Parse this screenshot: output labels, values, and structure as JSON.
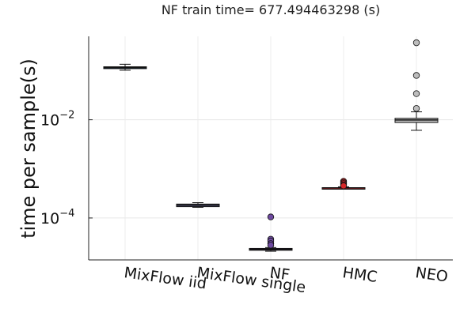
{
  "chart_data": {
    "type": "box",
    "title": "NF train time= 677.494463298 (s)",
    "xlabel": "",
    "ylabel": "time per sample(s)",
    "yscale": "log10",
    "ylim": [
      1.4e-05,
      0.5
    ],
    "yticks": [
      {
        "value": 0.0001,
        "base": "10",
        "exponent": "−4"
      },
      {
        "value": 0.01,
        "base": "10",
        "exponent": "−2"
      }
    ],
    "grid": true,
    "legend": "none",
    "categories": [
      "MixFlow iid",
      "MixFlow single",
      "NF",
      "HMC",
      "NEO"
    ],
    "boxes": [
      {
        "category": "MixFlow iid",
        "color": "#1f77b4",
        "whisker_low": 0.102,
        "q1": 0.11,
        "median": 0.115,
        "q3": 0.12,
        "whisker_high": 0.135,
        "outliers": []
      },
      {
        "category": "MixFlow single",
        "color": "#6d6f9e",
        "whisker_low": 0.000165,
        "q1": 0.00017,
        "median": 0.000182,
        "q3": 0.000192,
        "whisker_high": 0.000205,
        "outliers": []
      },
      {
        "category": "NF",
        "color": "#6e4aa0",
        "whisker_low": 2.1e-05,
        "q1": 2.2e-05,
        "median": 2.3e-05,
        "q3": 2.4e-05,
        "whisker_high": 2.5e-05,
        "outliers": [
          0.000105,
          3.7e-05,
          3.4e-05,
          3e-05,
          2.8e-05
        ]
      },
      {
        "category": "HMC",
        "color": "#d62728",
        "whisker_low": 0.000395,
        "q1": 0.0004,
        "median": 0.00041,
        "q3": 0.000415,
        "whisker_high": 0.00043,
        "outliers": [
          0.00056,
          0.00053,
          0.0005,
          0.00047,
          0.00045
        ]
      },
      {
        "category": "NEO",
        "color": "#bdbdbd",
        "whisker_low": 0.0061,
        "q1": 0.0088,
        "median": 0.0099,
        "q3": 0.0107,
        "whisker_high": 0.0145,
        "outliers": [
          0.017,
          0.034,
          0.08,
          0.37
        ]
      }
    ]
  }
}
